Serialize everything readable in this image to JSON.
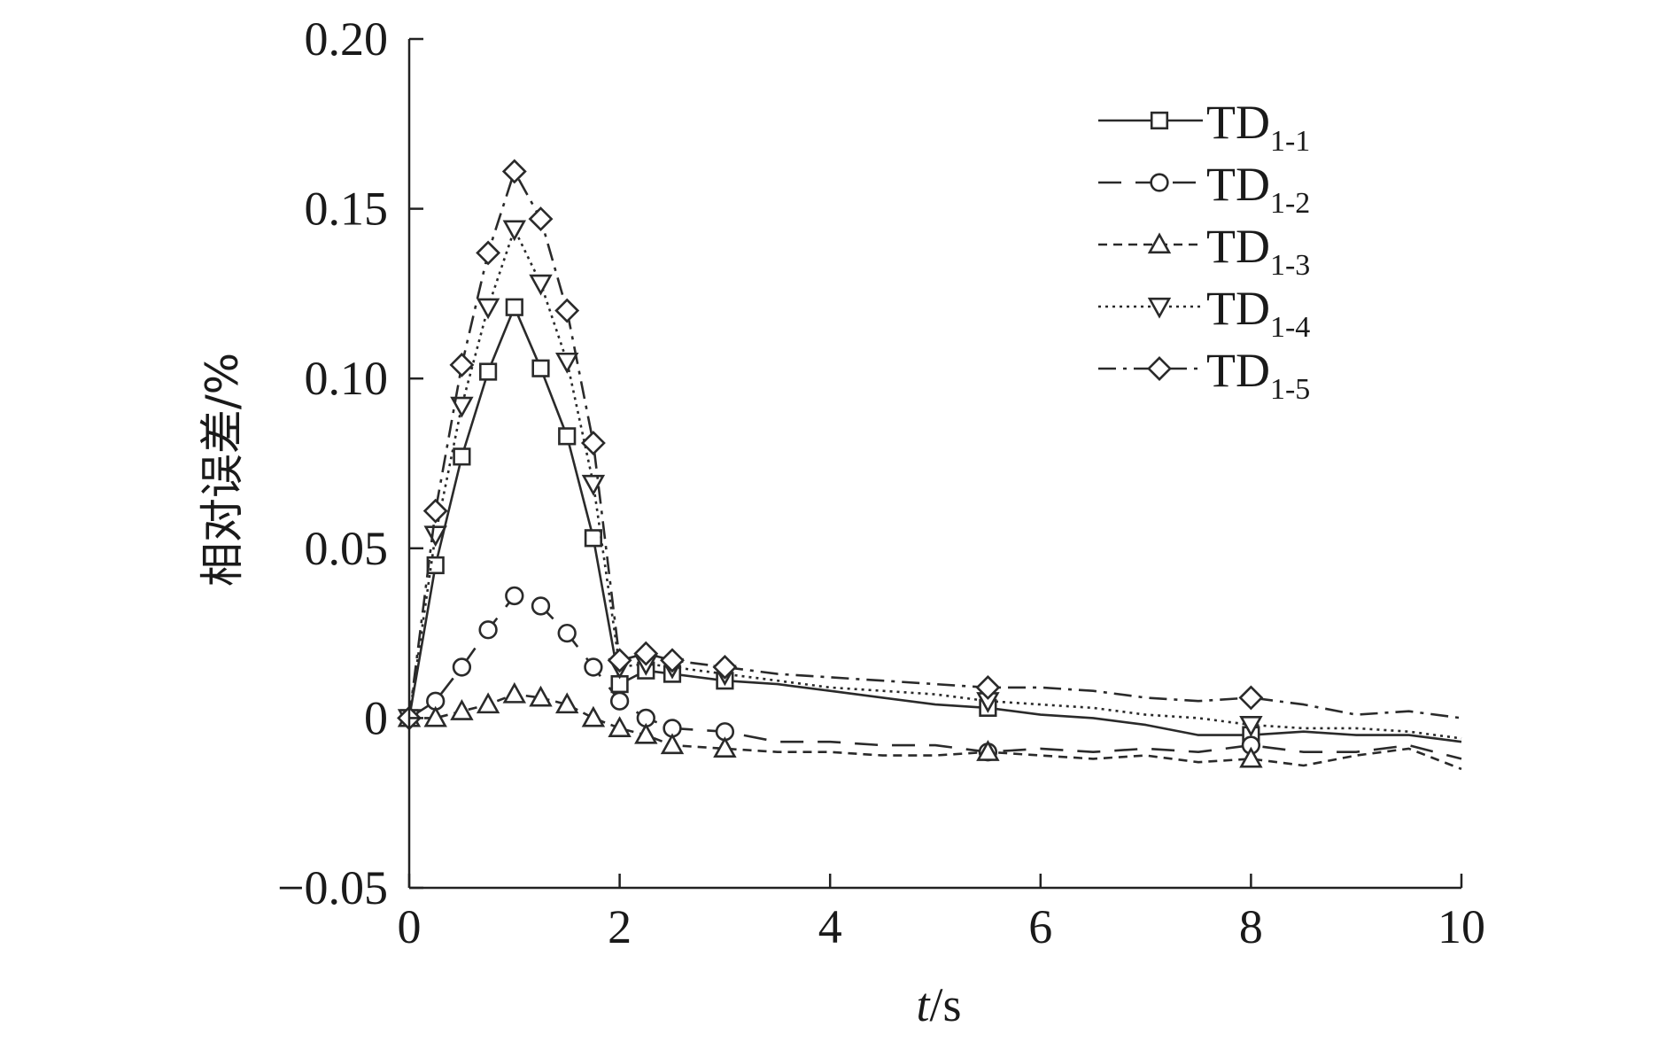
{
  "chart_data": {
    "type": "line",
    "title": "",
    "xlabel": {
      "italic": "t",
      "rest": "/s"
    },
    "ylabel": "相对误差/%",
    "xlim": [
      0,
      10
    ],
    "ylim": [
      -0.05,
      0.2
    ],
    "x_ticks": [
      0,
      2,
      4,
      6,
      8,
      10
    ],
    "x_tick_labels": [
      "0",
      "2",
      "4",
      "6",
      "8",
      "10"
    ],
    "y_ticks": [
      -0.05,
      0,
      0.05,
      0.1,
      0.15,
      0.2
    ],
    "y_tick_labels": [
      "−0.05",
      "0",
      "0.05",
      "0.10",
      "0.15",
      "0.20"
    ],
    "grid": false,
    "legend_position": "top-right",
    "series": [
      {
        "name": "TD",
        "name_sub": "1-1",
        "marker": "square",
        "dash": "solid",
        "color": "#2a2a2a",
        "x": [
          0,
          0.25,
          0.5,
          0.75,
          1.0,
          1.25,
          1.5,
          1.75,
          2.0,
          2.25,
          2.5,
          3.0,
          3.5,
          4.0,
          4.5,
          5.0,
          5.5,
          6.0,
          6.5,
          7.0,
          7.5,
          8.0,
          8.5,
          9.0,
          9.5,
          10.0
        ],
        "y": [
          0,
          0.045,
          0.077,
          0.102,
          0.121,
          0.103,
          0.083,
          0.053,
          0.01,
          0.014,
          0.013,
          0.011,
          0.01,
          0.008,
          0.006,
          0.004,
          0.003,
          0.001,
          0.0,
          -0.002,
          -0.005,
          -0.005,
          -0.004,
          -0.005,
          -0.005,
          -0.007
        ],
        "marker_x": [
          0,
          0.25,
          0.5,
          0.75,
          1.0,
          1.25,
          1.5,
          1.75,
          2.0,
          2.25,
          2.5,
          3.0,
          5.5,
          8.0
        ]
      },
      {
        "name": "TD",
        "name_sub": "1-2",
        "marker": "circle",
        "dash": "long-dash",
        "color": "#2a2a2a",
        "x": [
          0,
          0.25,
          0.5,
          0.75,
          1.0,
          1.25,
          1.5,
          1.75,
          2.0,
          2.25,
          2.5,
          3.0,
          3.5,
          4.0,
          4.5,
          5.0,
          5.5,
          6.0,
          6.5,
          7.0,
          7.5,
          8.0,
          8.5,
          9.0,
          9.5,
          10.0
        ],
        "y": [
          0,
          0.005,
          0.015,
          0.026,
          0.036,
          0.033,
          0.025,
          0.015,
          0.005,
          0.0,
          -0.003,
          -0.004,
          -0.007,
          -0.007,
          -0.008,
          -0.008,
          -0.01,
          -0.009,
          -0.01,
          -0.009,
          -0.01,
          -0.008,
          -0.01,
          -0.01,
          -0.008,
          -0.012
        ],
        "marker_x": [
          0,
          0.25,
          0.5,
          0.75,
          1.0,
          1.25,
          1.5,
          1.75,
          2.0,
          2.25,
          2.5,
          3.0,
          5.5,
          8.0
        ]
      },
      {
        "name": "TD",
        "name_sub": "1-3",
        "marker": "triangle-up",
        "dash": "short-dash",
        "color": "#2a2a2a",
        "x": [
          0,
          0.25,
          0.5,
          0.75,
          1.0,
          1.25,
          1.5,
          1.75,
          2.0,
          2.25,
          2.5,
          3.0,
          3.5,
          4.0,
          4.5,
          5.0,
          5.5,
          6.0,
          6.5,
          7.0,
          7.5,
          8.0,
          8.5,
          9.0,
          9.5,
          10.0
        ],
        "y": [
          0,
          0.0,
          0.002,
          0.004,
          0.007,
          0.006,
          0.004,
          0.0,
          -0.003,
          -0.005,
          -0.008,
          -0.009,
          -0.01,
          -0.01,
          -0.011,
          -0.011,
          -0.01,
          -0.011,
          -0.012,
          -0.011,
          -0.013,
          -0.012,
          -0.014,
          -0.011,
          -0.009,
          -0.015
        ],
        "marker_x": [
          0,
          0.25,
          0.5,
          0.75,
          1.0,
          1.25,
          1.5,
          1.75,
          2.0,
          2.25,
          2.5,
          3.0,
          5.5,
          8.0
        ]
      },
      {
        "name": "TD",
        "name_sub": "1-4",
        "marker": "triangle-down",
        "dash": "dotted",
        "color": "#2a2a2a",
        "x": [
          0,
          0.25,
          0.5,
          0.75,
          1.0,
          1.25,
          1.5,
          1.75,
          2.0,
          2.25,
          2.5,
          3.0,
          3.5,
          4.0,
          4.5,
          5.0,
          5.5,
          6.0,
          6.5,
          7.0,
          7.5,
          8.0,
          8.5,
          9.0,
          9.5,
          10.0
        ],
        "y": [
          0,
          0.054,
          0.092,
          0.121,
          0.144,
          0.128,
          0.105,
          0.069,
          0.015,
          0.016,
          0.015,
          0.013,
          0.011,
          0.009,
          0.008,
          0.007,
          0.005,
          0.004,
          0.003,
          0.001,
          0.0,
          -0.002,
          -0.003,
          -0.003,
          -0.004,
          -0.006
        ],
        "marker_x": [
          0,
          0.25,
          0.5,
          0.75,
          1.0,
          1.25,
          1.5,
          1.75,
          2.0,
          2.25,
          2.5,
          3.0,
          5.5,
          8.0
        ]
      },
      {
        "name": "TD",
        "name_sub": "1-5",
        "marker": "diamond",
        "dash": "dash-dot",
        "color": "#2a2a2a",
        "x": [
          0,
          0.25,
          0.5,
          0.75,
          1.0,
          1.25,
          1.5,
          1.75,
          2.0,
          2.25,
          2.5,
          3.0,
          3.5,
          4.0,
          4.5,
          5.0,
          5.5,
          6.0,
          6.5,
          7.0,
          7.5,
          8.0,
          8.5,
          9.0,
          9.5,
          10.0
        ],
        "y": [
          0,
          0.061,
          0.104,
          0.137,
          0.161,
          0.147,
          0.12,
          0.081,
          0.017,
          0.019,
          0.017,
          0.015,
          0.013,
          0.012,
          0.011,
          0.01,
          0.009,
          0.009,
          0.008,
          0.006,
          0.005,
          0.006,
          0.004,
          0.001,
          0.002,
          0.0
        ],
        "marker_x": [
          0,
          0.25,
          0.5,
          0.75,
          1.0,
          1.25,
          1.5,
          1.75,
          2.0,
          2.25,
          2.5,
          3.0,
          5.5,
          8.0
        ]
      }
    ]
  }
}
